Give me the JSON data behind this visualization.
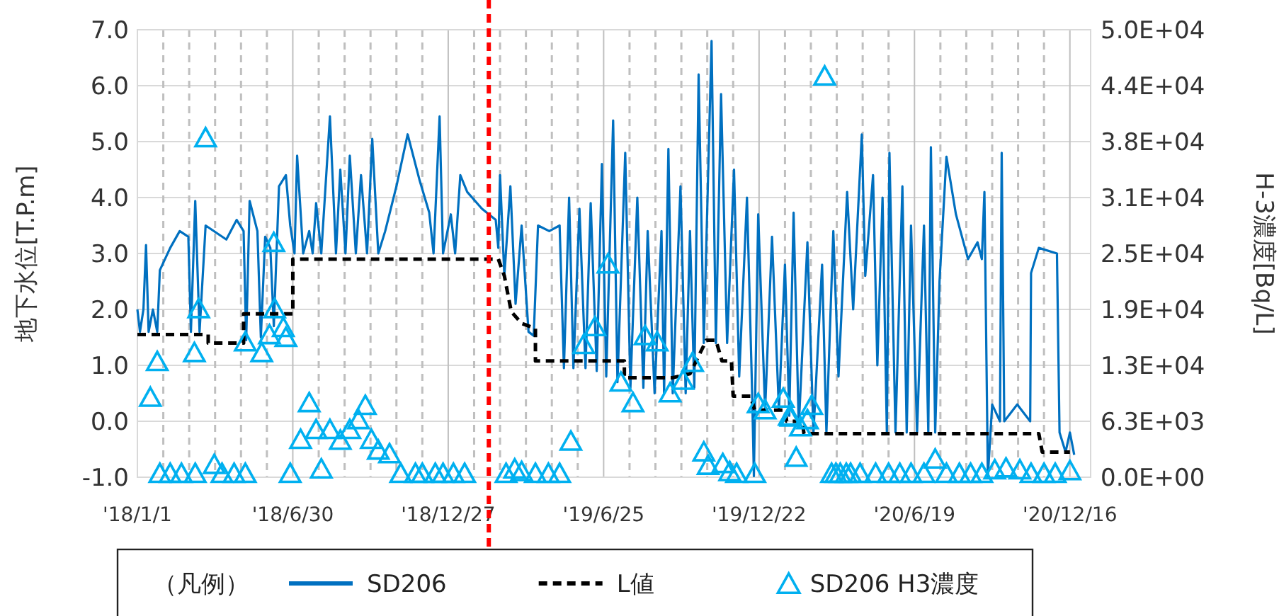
{
  "chart_data": {
    "type": "line",
    "ylabel": "地下水位[T.P.m]",
    "y2label": "H-3濃度[Bq/L]",
    "legend_title": "（凡例）",
    "legend": "bottom",
    "grid": true,
    "xlim": [
      "2018-01-01",
      "2021-01-09"
    ],
    "xticks": [
      {
        "value": "2018-01-01",
        "label": "'18/1/1"
      },
      {
        "value": "2018-01-31",
        "label": null
      },
      {
        "value": "2018-03-02",
        "label": null
      },
      {
        "value": "2018-04-01",
        "label": null
      },
      {
        "value": "2018-05-01",
        "label": null
      },
      {
        "value": "2018-05-31",
        "label": null
      },
      {
        "value": "2018-06-30",
        "label": "'18/6/30"
      },
      {
        "value": "2018-07-30",
        "label": null
      },
      {
        "value": "2018-08-29",
        "label": null
      },
      {
        "value": "2018-09-28",
        "label": null
      },
      {
        "value": "2018-10-28",
        "label": null
      },
      {
        "value": "2018-11-27",
        "label": null
      },
      {
        "value": "2018-12-27",
        "label": "'18/12/27"
      },
      {
        "value": "2019-01-26",
        "label": null
      },
      {
        "value": "2019-02-25",
        "label": null
      },
      {
        "value": "2019-03-27",
        "label": null
      },
      {
        "value": "2019-04-26",
        "label": null
      },
      {
        "value": "2019-05-26",
        "label": null
      },
      {
        "value": "2019-06-25",
        "label": "'19/6/25"
      },
      {
        "value": "2019-07-25",
        "label": null
      },
      {
        "value": "2019-08-24",
        "label": null
      },
      {
        "value": "2019-09-23",
        "label": null
      },
      {
        "value": "2019-10-23",
        "label": null
      },
      {
        "value": "2019-11-22",
        "label": null
      },
      {
        "value": "2019-12-22",
        "label": "'19/12/22"
      },
      {
        "value": "2020-01-21",
        "label": null
      },
      {
        "value": "2020-02-20",
        "label": null
      },
      {
        "value": "2020-03-21",
        "label": null
      },
      {
        "value": "2020-04-20",
        "label": null
      },
      {
        "value": "2020-05-20",
        "label": null
      },
      {
        "value": "2020-06-19",
        "label": "'20/6/19"
      },
      {
        "value": "2020-07-19",
        "label": null
      },
      {
        "value": "2020-08-18",
        "label": null
      },
      {
        "value": "2020-09-17",
        "label": null
      },
      {
        "value": "2020-10-17",
        "label": null
      },
      {
        "value": "2020-11-16",
        "label": null
      },
      {
        "value": "2020-12-16",
        "label": "'20/12/16"
      }
    ],
    "ylim": [
      -1,
      7
    ],
    "yticks": [
      {
        "value": -1,
        "label": "-1.0"
      },
      {
        "value": 0,
        "label": "0.0"
      },
      {
        "value": 1,
        "label": "1.0"
      },
      {
        "value": 2,
        "label": "2.0"
      },
      {
        "value": 3,
        "label": "3.0"
      },
      {
        "value": 4,
        "label": "4.0"
      },
      {
        "value": 5,
        "label": "5.0"
      },
      {
        "value": 6,
        "label": "6.0"
      },
      {
        "value": 7,
        "label": "7.0"
      }
    ],
    "y2lim": [
      0,
      50000
    ],
    "y2ticks": [
      {
        "value": 0,
        "label": "0.0E+00"
      },
      {
        "value": 6250,
        "label": "6.3E+03"
      },
      {
        "value": 12500,
        "label": "1.3E+04"
      },
      {
        "value": 18750,
        "label": "1.9E+04"
      },
      {
        "value": 25000,
        "label": "2.5E+04"
      },
      {
        "value": 31250,
        "label": "3.1E+04"
      },
      {
        "value": 37500,
        "label": "3.8E+04"
      },
      {
        "value": 43750,
        "label": "4.4E+04"
      },
      {
        "value": 50000,
        "label": "5.0E+04"
      }
    ],
    "ref_lines": [
      {
        "axis": "x",
        "value": "2019-02-12",
        "color": "#ff0000",
        "line_style": "dashed"
      }
    ],
    "series": [
      {
        "name": "SD206",
        "type": "line",
        "color": "#0070c0",
        "x": [
          "2018-01-01",
          "2018-01-04",
          "2018-01-08",
          "2018-01-11",
          "2018-01-14",
          "2018-01-19",
          "2018-01-24",
          "2018-01-27",
          "2018-02-08",
          "2018-02-19",
          "2018-03-01",
          "2018-03-04",
          "2018-03-09",
          "2018-03-14",
          "2018-03-21",
          "2018-04-14",
          "2018-04-26",
          "2018-05-04",
          "2018-05-07",
          "2018-05-11",
          "2018-05-20",
          "2018-05-24",
          "2018-05-29",
          "2018-06-04",
          "2018-06-08",
          "2018-06-14",
          "2018-06-22",
          "2018-06-27",
          "2018-07-02",
          "2018-07-05",
          "2018-07-12",
          "2018-07-19",
          "2018-07-23",
          "2018-07-27",
          "2018-08-02",
          "2018-08-12",
          "2018-08-19",
          "2018-08-24",
          "2018-08-30",
          "2018-09-04",
          "2018-09-11",
          "2018-09-17",
          "2018-09-24",
          "2018-09-30",
          "2018-10-07",
          "2018-10-15",
          "2018-10-28",
          "2018-11-10",
          "2018-11-24",
          "2018-12-05",
          "2018-12-10",
          "2018-12-17",
          "2018-12-21",
          "2018-12-30",
          "2019-01-04",
          "2019-01-10",
          "2019-01-18",
          "2019-02-04",
          "2019-02-20",
          "2019-02-23",
          "2019-02-25",
          "2019-03-02",
          "2019-03-09",
          "2019-03-15",
          "2019-03-22",
          "2019-03-30",
          "2019-04-05",
          "2019-04-10",
          "2019-04-23",
          "2019-05-05",
          "2019-05-10",
          "2019-05-16",
          "2019-05-21",
          "2019-05-28",
          "2019-06-04",
          "2019-06-10",
          "2019-06-17",
          "2019-06-23",
          "2019-06-28",
          "2019-07-06",
          "2019-07-11",
          "2019-07-20",
          "2019-07-26",
          "2019-08-03",
          "2019-08-10",
          "2019-08-15",
          "2019-08-23",
          "2019-08-31",
          "2019-09-03",
          "2019-09-08",
          "2019-09-13",
          "2019-09-22",
          "2019-09-28",
          "2019-10-03",
          "2019-10-08",
          "2019-10-13",
          "2019-10-19",
          "2019-10-28",
          "2019-11-02",
          "2019-11-08",
          "2019-11-15",
          "2019-11-23",
          "2019-11-29",
          "2019-12-08",
          "2019-12-14",
          "2019-12-16",
          "2019-12-21",
          "2019-12-29",
          "2020-01-06",
          "2020-01-14",
          "2020-01-21",
          "2020-01-26",
          "2020-01-31",
          "2020-02-06",
          "2020-02-16",
          "2020-02-23",
          "2020-03-04",
          "2020-03-09",
          "2020-03-17",
          "2020-03-23",
          "2020-04-02",
          "2020-04-09",
          "2020-04-19",
          "2020-04-23",
          "2020-05-02",
          "2020-05-07",
          "2020-05-13",
          "2020-05-18",
          "2020-05-21",
          "2020-05-28",
          "2020-06-05",
          "2020-06-10",
          "2020-06-15",
          "2020-06-22",
          "2020-06-30",
          "2020-07-05",
          "2020-07-08",
          "2020-07-13",
          "2020-07-18",
          "2020-07-26",
          "2020-08-06",
          "2020-08-20",
          "2020-08-31",
          "2020-09-05",
          "2020-09-08",
          "2020-09-12",
          "2020-09-17",
          "2020-09-26",
          "2020-09-28",
          "2020-10-01",
          "2020-10-16",
          "2020-10-31",
          "2020-11-01",
          "2020-11-10",
          "2020-12-01",
          "2020-12-04",
          "2020-12-11",
          "2020-12-16",
          "2020-12-21"
        ],
        "values": [
          2.0,
          1.6,
          2.0,
          3.15,
          1.6,
          2.0,
          1.6,
          2.7,
          3.1,
          3.4,
          3.3,
          1.6,
          3.94,
          1.6,
          3.5,
          3.25,
          3.6,
          3.4,
          1.45,
          3.94,
          3.4,
          1.5,
          3.3,
          3.1,
          1.7,
          4.2,
          4.4,
          3.5,
          3.0,
          4.75,
          3.0,
          3.4,
          3.0,
          3.9,
          3.0,
          5.45,
          3.0,
          4.5,
          3.0,
          4.75,
          3.0,
          4.4,
          3.0,
          5.05,
          3.0,
          3.4,
          4.2,
          5.13,
          4.3,
          3.73,
          3.0,
          5.45,
          3.0,
          3.7,
          3.0,
          4.4,
          4.1,
          3.8,
          3.6,
          3.1,
          4.4,
          2.6,
          4.2,
          2.1,
          3.5,
          1.6,
          1.53,
          3.5,
          3.4,
          3.5,
          0.95,
          4.0,
          0.95,
          3.8,
          0.95,
          3.9,
          0.9,
          4.6,
          0.8,
          5.38,
          0.7,
          4.8,
          0.6,
          4.0,
          0.6,
          3.4,
          0.5,
          3.4,
          0.5,
          4.87,
          0.5,
          4.2,
          0.5,
          3.4,
          0.6,
          6.2,
          1.4,
          6.8,
          1.4,
          5.85,
          1.4,
          4.5,
          0.8,
          4.0,
          0.5,
          -0.98,
          3.7,
          0.2,
          3.3,
          0.2,
          2.8,
          0.1,
          3.73,
          -0.1,
          3.2,
          -0.2,
          2.8,
          -0.2,
          3.4,
          0.8,
          4.1,
          2.0,
          5.13,
          2.6,
          4.4,
          1.0,
          4.0,
          -0.2,
          4.8,
          -0.2,
          4.2,
          -0.2,
          3.5,
          -0.2,
          3.5,
          -0.2,
          4.9,
          -0.2,
          2.5,
          4.73,
          3.7,
          2.9,
          3.2,
          2.9,
          4.1,
          -0.98,
          0.3,
          0.0,
          4.8,
          0.0,
          0.3,
          0.0,
          2.65,
          3.1,
          3.0,
          -0.2,
          -0.55,
          -0.2,
          -0.6
        ]
      },
      {
        "name": "L値",
        "type": "line",
        "color": "#000000",
        "line_style": "dashed",
        "x": [
          "2018-01-01",
          "2018-03-24",
          "2018-03-24",
          "2018-05-04",
          "2018-05-04",
          "2018-06-30",
          "2018-06-30",
          "2019-02-23",
          "2019-03-02",
          "2019-03-10",
          "2019-03-22",
          "2019-04-07",
          "2019-04-07",
          "2019-07-19",
          "2019-07-19",
          "2019-09-13",
          "2019-10-03",
          "2019-10-22",
          "2019-11-02",
          "2019-11-09",
          "2019-11-20",
          "2019-11-22",
          "2019-12-12",
          "2019-12-17",
          "2020-01-21",
          "2020-01-23",
          "2020-02-10",
          "2020-02-12",
          "2020-11-10",
          "2020-11-14",
          "2020-12-16"
        ],
        "values": [
          1.55,
          1.55,
          1.4,
          1.4,
          1.92,
          1.92,
          2.9,
          2.9,
          2.6,
          1.96,
          1.75,
          1.66,
          1.08,
          1.08,
          0.78,
          0.78,
          0.85,
          1.45,
          1.45,
          1.08,
          1.08,
          0.45,
          0.45,
          0.2,
          0.2,
          0.0,
          0.0,
          -0.22,
          -0.22,
          -0.55,
          -0.55
        ]
      },
      {
        "name": "SD206 H3濃度",
        "type": "scatter",
        "axis": "y2",
        "marker": "triangle",
        "color": "#00b0f0",
        "x": [
          "2018-01-16",
          "2018-01-24",
          "2018-01-27",
          "2018-02-08",
          "2018-02-21",
          "2018-03-08",
          "2018-03-09",
          "2018-03-13",
          "2018-03-21",
          "2018-03-31",
          "2018-04-09",
          "2018-04-23",
          "2018-05-06",
          "2018-05-06",
          "2018-05-25",
          "2018-06-03",
          "2018-06-08",
          "2018-06-09",
          "2018-06-19",
          "2018-06-22",
          "2018-06-27",
          "2018-07-09",
          "2018-07-19",
          "2018-07-27",
          "2018-08-02",
          "2018-08-12",
          "2018-08-24",
          "2018-09-04",
          "2018-09-14",
          "2018-09-22",
          "2018-09-29",
          "2018-10-07",
          "2018-10-20",
          "2018-11-02",
          "2018-11-19",
          "2018-11-27",
          "2018-12-12",
          "2018-12-21",
          "2019-01-02",
          "2019-01-15",
          "2019-03-04",
          "2019-03-14",
          "2019-03-22",
          "2019-04-07",
          "2019-04-22",
          "2019-05-05",
          "2019-05-18",
          "2019-06-02",
          "2019-06-15",
          "2019-06-30",
          "2019-07-15",
          "2019-07-29",
          "2019-08-12",
          "2019-08-26",
          "2019-09-10",
          "2019-09-25",
          "2019-10-06",
          "2019-10-19",
          "2019-10-24",
          "2019-11-10",
          "2019-11-18",
          "2019-11-26",
          "2019-12-17",
          "2019-12-21",
          "2019-12-29",
          "2020-01-19",
          "2020-01-26",
          "2020-01-28",
          "2020-02-03",
          "2020-02-08",
          "2020-02-16",
          "2020-02-21",
          "2020-03-07",
          "2020-03-15",
          "2020-03-20",
          "2020-03-25",
          "2020-04-01",
          "2020-04-06",
          "2020-04-17",
          "2020-05-05",
          "2020-05-20",
          "2020-06-02",
          "2020-06-15",
          "2020-06-30",
          "2020-07-13",
          "2020-07-26",
          "2020-08-10",
          "2020-08-23",
          "2020-09-05",
          "2020-09-20",
          "2020-10-03",
          "2020-10-19",
          "2020-11-01",
          "2020-11-16",
          "2020-11-29",
          "2020-12-16"
        ],
        "values": [
          8500,
          12500,
          0,
          0,
          0,
          13500,
          0,
          18400,
          37500,
          1000,
          0,
          0,
          14700,
          0,
          13500,
          15500,
          25800,
          18400,
          16300,
          15200,
          0,
          3800,
          7900,
          4900,
          500,
          4900,
          3700,
          4900,
          6000,
          7600,
          3800,
          2600,
          2200,
          0,
          0,
          0,
          0,
          0,
          0,
          0,
          0,
          500,
          200,
          0,
          0,
          0,
          3600,
          14400,
          16400,
          23400,
          10200,
          7900,
          15400,
          14700,
          9000,
          10400,
          12400,
          2400,
          900,
          1100,
          200,
          0,
          0,
          7800,
          7100,
          8400,
          6400,
          6300,
          1800,
          5200,
          6000,
          7600,
          44400,
          0,
          0,
          0,
          0,
          0,
          0,
          0,
          0,
          0,
          0,
          0,
          1600,
          0,
          0,
          0,
          0,
          400,
          600,
          400,
          0,
          0,
          0,
          300
        ]
      }
    ]
  }
}
